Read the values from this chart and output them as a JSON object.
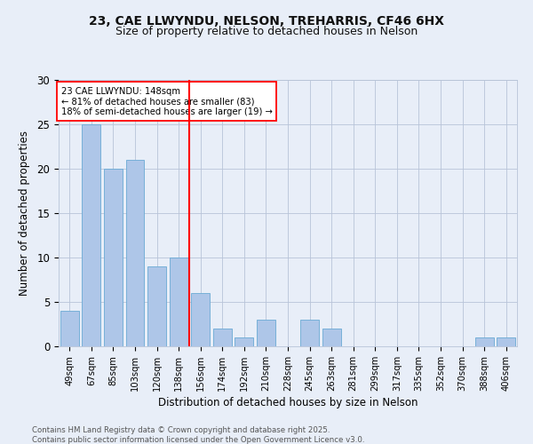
{
  "title_line1": "23, CAE LLWYNDU, NELSON, TREHARRIS, CF46 6HX",
  "title_line2": "Size of property relative to detached houses in Nelson",
  "xlabel": "Distribution of detached houses by size in Nelson",
  "ylabel": "Number of detached properties",
  "categories": [
    "49sqm",
    "67sqm",
    "85sqm",
    "103sqm",
    "120sqm",
    "138sqm",
    "156sqm",
    "174sqm",
    "192sqm",
    "210sqm",
    "228sqm",
    "245sqm",
    "263sqm",
    "281sqm",
    "299sqm",
    "317sqm",
    "335sqm",
    "352sqm",
    "370sqm",
    "388sqm",
    "406sqm"
  ],
  "values": [
    4,
    25,
    20,
    21,
    9,
    10,
    6,
    2,
    1,
    3,
    0,
    3,
    2,
    0,
    0,
    0,
    0,
    0,
    0,
    1,
    1
  ],
  "bar_color": "#aec6e8",
  "bar_edgecolor": "#6aaad4",
  "red_line_x": 5.5,
  "annotation_title": "23 CAE LLWYNDU: 148sqm",
  "annotation_line1": "← 81% of detached houses are smaller (83)",
  "annotation_line2": "18% of semi-detached houses are larger (19) →",
  "ylim": [
    0,
    30
  ],
  "yticks": [
    0,
    5,
    10,
    15,
    20,
    25,
    30
  ],
  "footer_line1": "Contains HM Land Registry data © Crown copyright and database right 2025.",
  "footer_line2": "Contains public sector information licensed under the Open Government Licence v3.0.",
  "background_color": "#e8eef8"
}
